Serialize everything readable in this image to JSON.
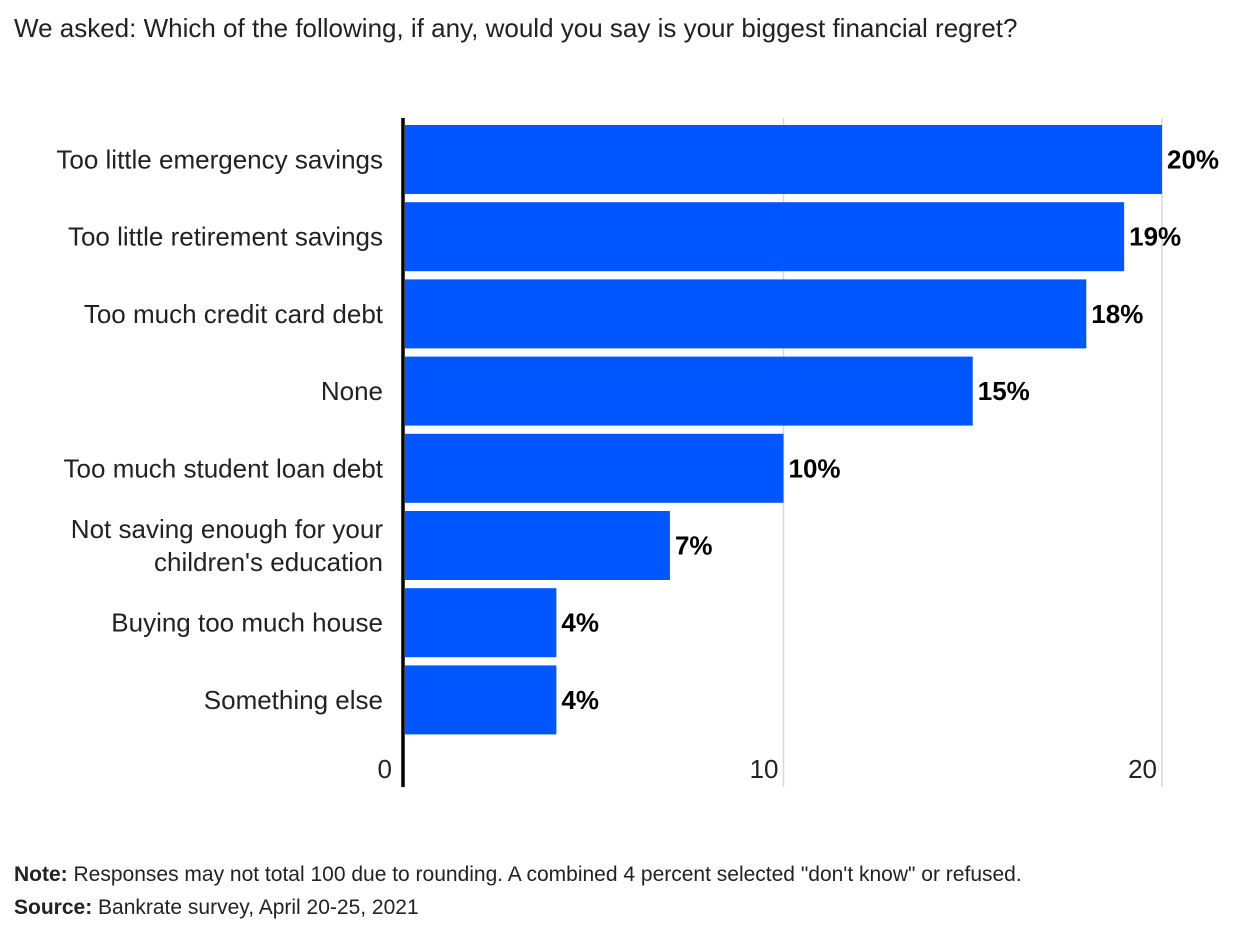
{
  "title": "We asked: Which of the following, if any, would you say is your biggest financial regret?",
  "footer": {
    "note_label": "Note:",
    "note_text": " Responses may not total 100 due to rounding. A combined 4 percent selected \"don't know\" or refused.",
    "source_label": "Source:",
    "source_text": " Bankrate survey, April 20-25, 2021"
  },
  "chart_data": {
    "type": "bar",
    "orientation": "horizontal",
    "categories": [
      [
        "Too little emergency savings"
      ],
      [
        "Too little retirement savings"
      ],
      [
        "Too much credit card debt"
      ],
      [
        "None"
      ],
      [
        "Too much student loan debt"
      ],
      [
        "Not saving enough for your",
        "children's education"
      ],
      [
        "Buying too much house"
      ],
      [
        "Something else"
      ]
    ],
    "values": [
      20,
      19,
      18,
      15,
      10,
      7,
      4,
      4
    ],
    "value_labels": [
      "20%",
      "19%",
      "18%",
      "15%",
      "10%",
      "7%",
      "4%",
      "4%"
    ],
    "xticks": [
      0,
      10,
      20
    ],
    "xlim": [
      0,
      20
    ],
    "grid": true,
    "bar_color": "#0057ff",
    "grid_color": "#d9d9d9",
    "axis_color": "#000000"
  }
}
